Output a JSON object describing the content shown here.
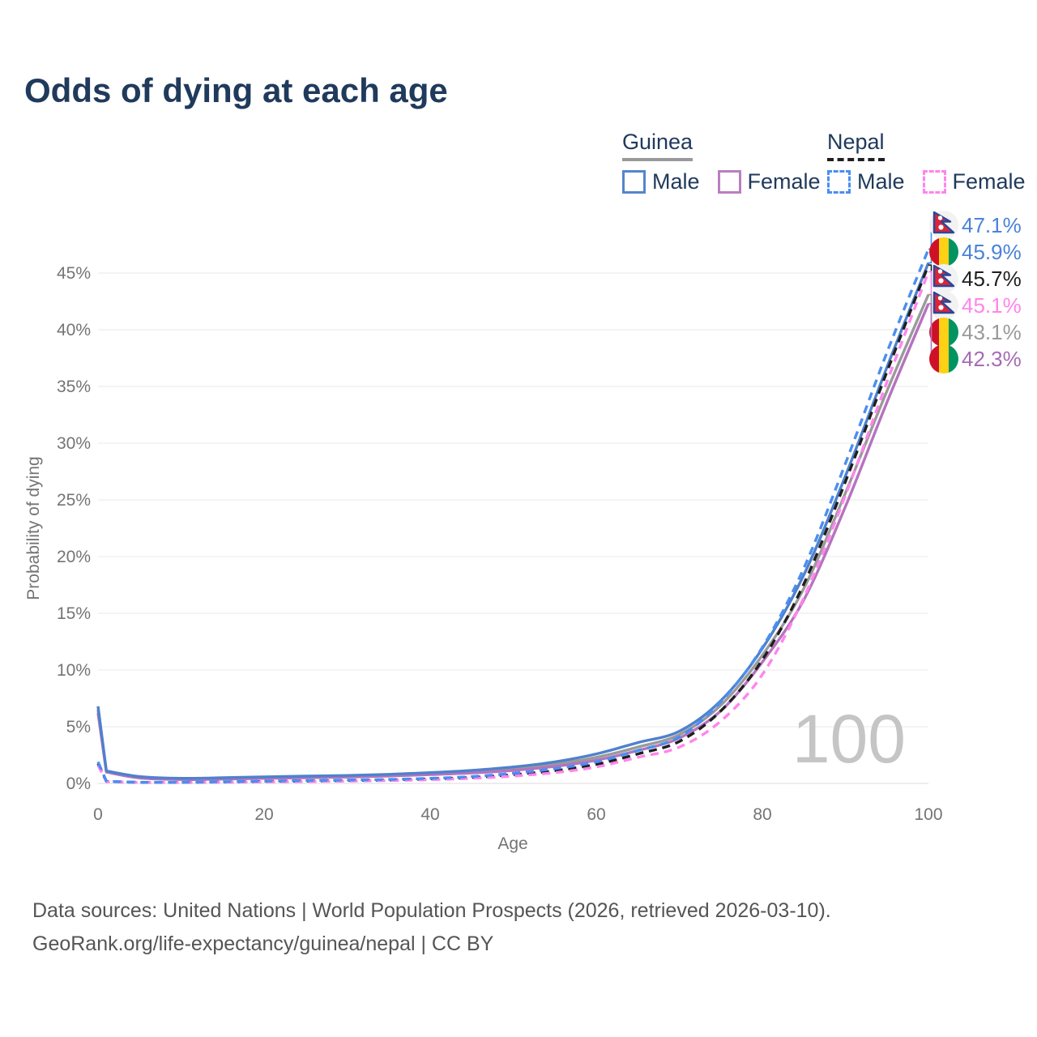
{
  "header": {
    "title": "Odds of dying at each age"
  },
  "legend": {
    "groups": [
      {
        "title": "Guinea",
        "underline_style": "solid",
        "underline_color": "#999999",
        "items": [
          {
            "label": "Male",
            "style": "solid",
            "color": "#5585cc"
          },
          {
            "label": "Female",
            "style": "solid",
            "color": "#bb7ec0"
          }
        ]
      },
      {
        "title": "Nepal",
        "underline_style": "dashed",
        "underline_color": "#1f1f1f",
        "items": [
          {
            "label": "Male",
            "style": "dashed",
            "color": "#4a8ef2"
          },
          {
            "label": "Female",
            "style": "dashed",
            "color": "#ff85ec"
          }
        ]
      }
    ]
  },
  "chart_data": {
    "type": "line",
    "title": "Odds of dying at each age",
    "xlabel": "Age",
    "ylabel": "Probability of dying",
    "xlim": [
      0,
      100
    ],
    "ylim": [
      0,
      47.5
    ],
    "grid": true,
    "watermark": "100",
    "x_ticks": {
      "values": [
        0,
        20,
        40,
        60,
        80,
        100
      ],
      "labels": [
        "0",
        "20",
        "40",
        "60",
        "80",
        "100"
      ]
    },
    "y_ticks": {
      "values": [
        0,
        5,
        10,
        15,
        20,
        25,
        30,
        35,
        40,
        45
      ],
      "labels": [
        "0%",
        "5%",
        "10%",
        "15%",
        "20%",
        "25%",
        "30%",
        "35%",
        "40%",
        "45%"
      ]
    },
    "ages": [
      0,
      1,
      5,
      10,
      15,
      20,
      25,
      30,
      35,
      40,
      45,
      50,
      55,
      60,
      65,
      70,
      75,
      80,
      85,
      90,
      95,
      100
    ],
    "series": [
      {
        "name": "Guinea All",
        "country": "Guinea",
        "sex": "Both",
        "flag": "guinea",
        "color": "#9a9a9a",
        "label_color": "#9a9a9a",
        "dashed": false,
        "end_label": "43.1%",
        "values": [
          6.5,
          1.05,
          0.52,
          0.38,
          0.42,
          0.5,
          0.55,
          0.62,
          0.72,
          0.85,
          1.0,
          1.3,
          1.7,
          2.3,
          3.2,
          4.3,
          6.9,
          11.3,
          17.2,
          25.6,
          34.6,
          43.1
        ]
      },
      {
        "name": "Guinea Female",
        "country": "Guinea",
        "sex": "Female",
        "flag": "guinea",
        "color": "#b573be",
        "label_color": "#a66bb5",
        "dashed": false,
        "end_label": "42.3%",
        "values": [
          6.2,
          1.0,
          0.48,
          0.34,
          0.38,
          0.44,
          0.5,
          0.56,
          0.65,
          0.78,
          0.92,
          1.15,
          1.5,
          2.05,
          2.9,
          4.0,
          6.4,
          10.7,
          16.2,
          24.4,
          33.6,
          42.3
        ]
      },
      {
        "name": "Guinea Male",
        "country": "Guinea",
        "sex": "Male",
        "flag": "guinea",
        "color": "#4f81cc",
        "label_color": "#4a82da",
        "dashed": false,
        "end_label": "45.9%",
        "values": [
          6.8,
          1.1,
          0.6,
          0.45,
          0.5,
          0.58,
          0.64,
          0.7,
          0.8,
          0.95,
          1.15,
          1.45,
          1.9,
          2.6,
          3.6,
          4.6,
          7.3,
          11.9,
          18.4,
          27.1,
          36.7,
          45.9
        ]
      },
      {
        "name": "Nepal All",
        "country": "Nepal",
        "sex": "Both",
        "flag": "nepal",
        "color": "#1f1f1f",
        "label_color": "#1f1f1f",
        "dashed": true,
        "end_label": "45.7%",
        "values": [
          1.75,
          0.18,
          0.09,
          0.09,
          0.12,
          0.17,
          0.2,
          0.25,
          0.3,
          0.4,
          0.52,
          0.78,
          1.12,
          1.68,
          2.6,
          3.7,
          6.4,
          10.9,
          17.6,
          26.6,
          36.3,
          45.7
        ]
      },
      {
        "name": "Nepal Female",
        "country": "Nepal",
        "sex": "Female",
        "flag": "nepal",
        "color": "#ff85ec",
        "label_color": "#ff85ec",
        "dashed": true,
        "end_label": "45.1%",
        "values": [
          1.6,
          0.15,
          0.08,
          0.08,
          0.1,
          0.13,
          0.16,
          0.2,
          0.25,
          0.33,
          0.45,
          0.65,
          0.95,
          1.45,
          2.3,
          3.2,
          5.5,
          9.6,
          16.4,
          25.4,
          35.4,
          45.1
        ]
      },
      {
        "name": "Nepal Male",
        "country": "Nepal",
        "sex": "Male",
        "flag": "nepal",
        "color": "#4a8ef2",
        "label_color": "#4a82da",
        "dashed": true,
        "end_label": "47.1%",
        "values": [
          1.9,
          0.2,
          0.1,
          0.1,
          0.15,
          0.2,
          0.25,
          0.3,
          0.35,
          0.45,
          0.6,
          0.9,
          1.3,
          1.9,
          2.9,
          4.1,
          7.2,
          12.0,
          19.0,
          28.2,
          38.0,
          47.1
        ]
      }
    ]
  },
  "footer": {
    "line1": "Data sources: United Nations | World Population Prospects (2026, retrieved 2026-03-10).",
    "line2": "GeoRank.org/life-expectancy/guinea/nepal | CC BY"
  }
}
